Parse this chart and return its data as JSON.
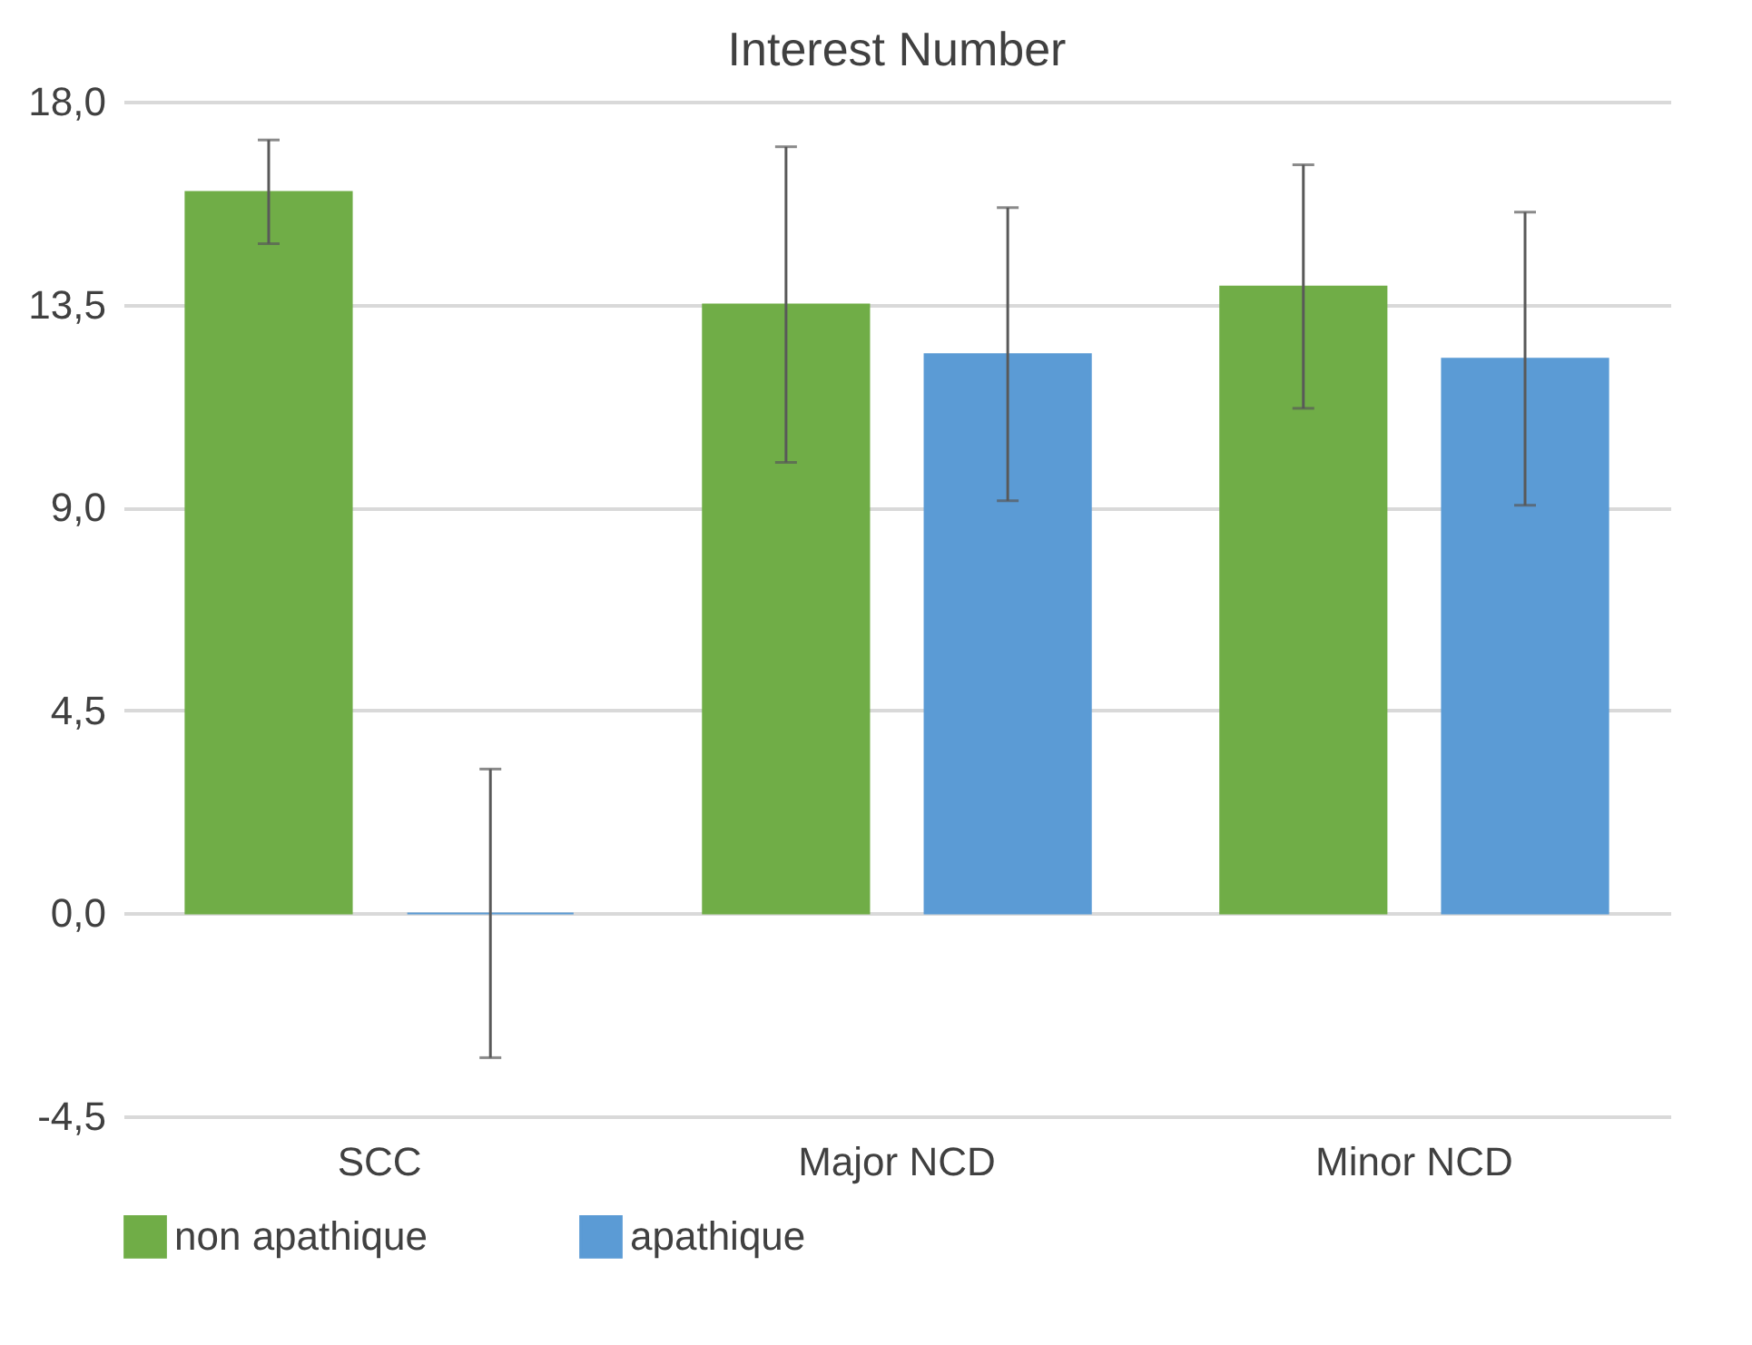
{
  "chart_data": {
    "type": "bar",
    "title": "Interest Number",
    "categories": [
      "SCC",
      "Major NCD",
      "Minor NCD"
    ],
    "series": [
      {
        "name": "non apathique",
        "color": "#70ad47",
        "values": [
          16.0,
          13.5,
          13.9
        ],
        "errors": [
          1.15,
          3.5,
          2.7
        ]
      },
      {
        "name": "apathique",
        "color": "#5b9bd5",
        "values": [
          0,
          12.4,
          12.3
        ],
        "errors": [
          3.2,
          3.25,
          3.25
        ]
      }
    ],
    "ylim": [
      -4.5,
      18
    ],
    "yticks": [
      {
        "value": -4.5,
        "label": "-4,5"
      },
      {
        "value": 0,
        "label": "0,0"
      },
      {
        "value": 4.5,
        "label": "4,5"
      },
      {
        "value": 9,
        "label": "9,0"
      },
      {
        "value": 13.5,
        "label": "13,5"
      },
      {
        "value": 18,
        "label": "18,0"
      }
    ],
    "grid": "y",
    "legend": "bottom"
  }
}
